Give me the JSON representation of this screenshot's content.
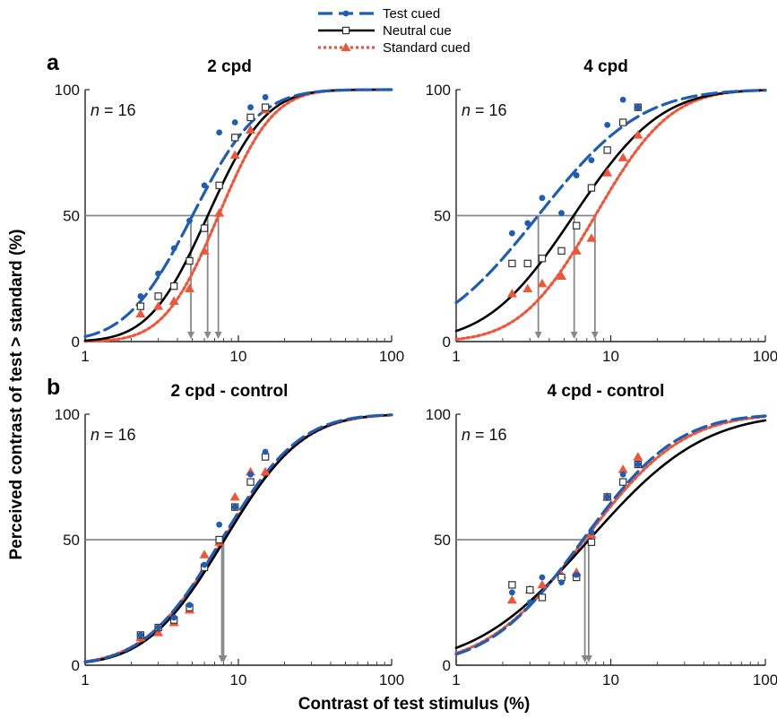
{
  "figure": {
    "xlabel": "Contrast of test stimulus (%)",
    "ylabel": "Perceived contrast of test > standard (%)"
  },
  "legend": {
    "placement": "top-center",
    "entries": [
      {
        "label": "Test cued",
        "color": "#1f5db3",
        "marker": "circle",
        "line": "dashed"
      },
      {
        "label": "Neutral cue",
        "color": "#000000",
        "marker": "open-square",
        "line": "solid"
      },
      {
        "label": "Standard cued",
        "color": "#f0553a",
        "marker": "triangle",
        "line": "dotted"
      }
    ]
  },
  "chart_data": [
    {
      "type": "scatter",
      "panel_label": "a",
      "title": "2 cpd",
      "annotation": "n = 16",
      "xscale": "log",
      "xlim": [
        1,
        100
      ],
      "ylim": [
        0,
        100
      ],
      "xticks": [
        "1",
        "10",
        "100"
      ],
      "yticks": [
        "0",
        "50",
        "100"
      ],
      "curves": {
        "test": {
          "mu": 0.7,
          "sigma": 0.34
        },
        "neutral": {
          "mu": 0.8,
          "sigma": 0.3
        },
        "standard": {
          "mu": 0.87,
          "sigma": 0.28
        }
      },
      "pse": [
        4.9,
        6.3,
        7.4
      ],
      "series": [
        {
          "name": "Test cued",
          "x": [
            2.3,
            3.0,
            3.8,
            4.8,
            6.0,
            7.5,
            9.5,
            12.0,
            15.0
          ],
          "y": [
            18,
            27,
            37,
            48,
            62,
            83,
            87,
            93,
            97
          ]
        },
        {
          "name": "Neutral cue",
          "x": [
            2.3,
            3.0,
            3.8,
            4.8,
            6.0,
            7.5,
            9.5,
            12.0,
            15.0
          ],
          "y": [
            14,
            18,
            22,
            32,
            45,
            62,
            81,
            89,
            93
          ]
        },
        {
          "name": "Standard cued",
          "x": [
            2.3,
            3.0,
            3.8,
            4.8,
            6.0,
            7.5,
            9.5,
            12.0,
            15.0
          ],
          "y": [
            11,
            14,
            16,
            21,
            36,
            51,
            74,
            84,
            92
          ]
        }
      ]
    },
    {
      "type": "scatter",
      "panel_label": "",
      "title": "4 cpd",
      "annotation": "n = 16",
      "xscale": "log",
      "xlim": [
        1,
        100
      ],
      "ylim": [
        0,
        100
      ],
      "xticks": [
        "1",
        "10",
        "100"
      ],
      "yticks": [
        "0",
        "50",
        "100"
      ],
      "curves": {
        "test": {
          "mu": 0.53,
          "sigma": 0.52
        },
        "neutral": {
          "mu": 0.76,
          "sigma": 0.44
        },
        "standard": {
          "mu": 0.9,
          "sigma": 0.38
        }
      },
      "pse": [
        3.4,
        5.8,
        7.9
      ],
      "series": [
        {
          "name": "Test cued",
          "x": [
            2.3,
            2.9,
            3.6,
            4.8,
            6.0,
            7.5,
            9.5,
            12.0,
            15.0
          ],
          "y": [
            43,
            47,
            57,
            51,
            66,
            72,
            86,
            96,
            93
          ]
        },
        {
          "name": "Neutral cue",
          "x": [
            2.3,
            2.9,
            3.6,
            4.8,
            6.0,
            7.5,
            9.5,
            12.0,
            15.0
          ],
          "y": [
            31,
            31,
            33,
            36,
            46,
            61,
            76,
            87,
            93
          ]
        },
        {
          "name": "Standard cued",
          "x": [
            2.3,
            2.9,
            3.6,
            4.8,
            6.0,
            7.5,
            9.5,
            12.0,
            15.0
          ],
          "y": [
            19,
            21,
            23,
            26,
            36,
            41,
            67,
            73,
            82
          ]
        }
      ]
    },
    {
      "type": "scatter",
      "panel_label": "b",
      "title": "2 cpd - control",
      "annotation": "n = 16",
      "xscale": "log",
      "xlim": [
        1,
        100
      ],
      "ylim": [
        0,
        100
      ],
      "xticks": [
        "1",
        "10",
        "100"
      ],
      "yticks": [
        "0",
        "50",
        "100"
      ],
      "curves": {
        "test": {
          "mu": 0.89,
          "sigma": 0.4
        },
        "neutral": {
          "mu": 0.91,
          "sigma": 0.4
        },
        "standard": {
          "mu": 0.9,
          "sigma": 0.41
        }
      },
      "pse": [
        7.8,
        8.0
      ],
      "series": [
        {
          "name": "Test cued",
          "x": [
            2.3,
            3.0,
            3.8,
            4.8,
            6.0,
            7.5,
            9.5,
            12.0,
            15.0
          ],
          "y": [
            12,
            15,
            19,
            24,
            40,
            56,
            63,
            76,
            85
          ]
        },
        {
          "name": "Neutral cue",
          "x": [
            2.3,
            3.0,
            3.8,
            4.8,
            6.0,
            7.5,
            9.5,
            12.0,
            15.0
          ],
          "y": [
            12,
            15,
            18,
            23,
            39,
            50,
            63,
            73,
            83
          ]
        },
        {
          "name": "Standard cued",
          "x": [
            2.3,
            3.0,
            3.8,
            4.8,
            6.0,
            7.5,
            9.5,
            12.0,
            15.0
          ],
          "y": [
            11,
            13,
            17,
            22,
            44,
            49,
            67,
            77,
            77
          ]
        }
      ]
    },
    {
      "type": "scatter",
      "panel_label": "",
      "title": "4 cpd - control",
      "annotation": "n = 16",
      "xscale": "log",
      "xlim": [
        1,
        100
      ],
      "ylim": [
        0,
        100
      ],
      "xticks": [
        "1",
        "10",
        "100"
      ],
      "yticks": [
        "0",
        "50",
        "100"
      ],
      "curves": {
        "test": {
          "mu": 0.82,
          "sigma": 0.48
        },
        "neutral": {
          "mu": 0.86,
          "sigma": 0.58
        },
        "standard": {
          "mu": 0.83,
          "sigma": 0.5
        }
      },
      "pse": [
        6.8,
        7.2
      ],
      "series": [
        {
          "name": "Test cued",
          "x": [
            2.3,
            3.0,
            3.6,
            4.8,
            6.0,
            7.5,
            9.5,
            12.0,
            15.0
          ],
          "y": [
            29,
            25,
            35,
            33,
            36,
            53,
            67,
            76,
            80
          ]
        },
        {
          "name": "Neutral cue",
          "x": [
            2.3,
            3.0,
            3.6,
            4.8,
            6.0,
            7.5,
            9.5,
            12.0,
            15.0
          ],
          "y": [
            32,
            30,
            27,
            35,
            35,
            49,
            67,
            73,
            80
          ]
        },
        {
          "name": "Standard cued",
          "x": [
            2.3,
            3.0,
            3.6,
            4.8,
            6.0,
            7.5,
            9.5,
            12.0,
            15.0
          ],
          "y": [
            26,
            30,
            32,
            36,
            37,
            52,
            67,
            78,
            83
          ]
        }
      ]
    }
  ]
}
